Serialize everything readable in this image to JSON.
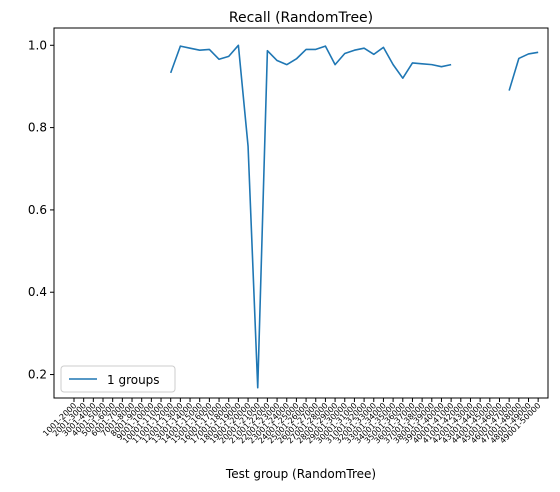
{
  "chart_data": {
    "type": "line",
    "title": "Recall (RandomTree)",
    "xlabel": "Test group (RandomTree)",
    "ylabel": "",
    "ylim": [
      0.143,
      1.042
    ],
    "yticks": [
      0.2,
      0.4,
      0.6,
      0.8,
      1.0
    ],
    "ytick_labels": [
      "0.2",
      "0.4",
      "0.6",
      "0.8",
      "1.0"
    ],
    "grid": false,
    "legend_position": "lower-left",
    "categories": [
      "1001-2000",
      "2001-3000",
      "3001-4000",
      "4001-5000",
      "5001-6000",
      "6001-7000",
      "7001-8000",
      "8001-9000",
      "9001-10000",
      "10001-11000",
      "11001-12000",
      "12001-13000",
      "13001-14000",
      "14001-15000",
      "15001-16000",
      "16001-17000",
      "17001-18000",
      "18001-19000",
      "19001-20000",
      "20001-21000",
      "21001-22000",
      "22001-23000",
      "23001-24000",
      "24001-25000",
      "25001-26000",
      "26001-27000",
      "27001-28000",
      "28001-29000",
      "29001-30000",
      "30001-31000",
      "31001-32000",
      "32001-33000",
      "33001-34000",
      "34001-35000",
      "35001-36000",
      "36001-37000",
      "37001-38000",
      "38001-39000",
      "39001-40000",
      "40001-41000",
      "41001-42000",
      "42001-43000",
      "43001-44000",
      "44001-45000",
      "45001-46000",
      "46001-47000",
      "47001-48000",
      "48001-49000",
      "49001-50000"
    ],
    "series": [
      {
        "name": "1 groups",
        "color": "#1f77b4",
        "values": [
          null,
          null,
          null,
          null,
          null,
          null,
          null,
          null,
          null,
          null,
          0.933,
          0.998,
          0.993,
          0.988,
          0.99,
          0.966,
          0.973,
          1.0,
          0.755,
          0.168,
          0.987,
          0.963,
          0.953,
          0.967,
          0.99,
          0.99,
          0.998,
          0.953,
          0.98,
          0.988,
          0.993,
          0.978,
          0.995,
          0.953,
          0.92,
          0.957,
          0.955,
          0.953,
          0.948,
          0.953,
          null,
          null,
          null,
          null,
          null,
          0.89,
          0.968,
          0.979,
          0.983
        ]
      }
    ]
  }
}
